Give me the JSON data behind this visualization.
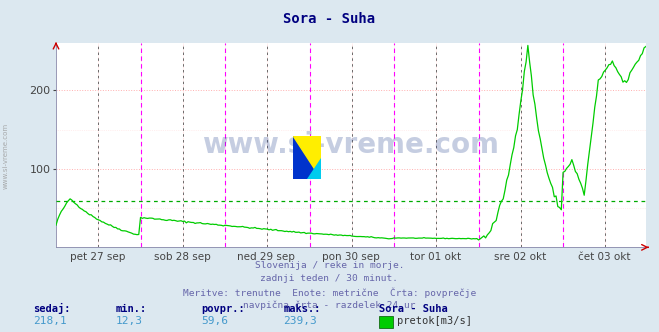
{
  "title": "Sora - Suha",
  "bg_color": "#dce8f0",
  "plot_bg_color": "#ffffff",
  "line_color": "#00cc00",
  "avg_line_color": "#00aa00",
  "avg_value": 59.6,
  "ylim": [
    0,
    260
  ],
  "yticks": [
    100,
    200
  ],
  "grid_color_h": "#ffb0b0",
  "grid_color_v": "#ffb0b0",
  "grid_minor_color": "#ffe0e0",
  "day_line_color": "#ff00ff",
  "noon_line_color": "#555555",
  "watermark": "www.si-vreme.com",
  "watermark_color": "#1a3a8a",
  "watermark_alpha": 0.25,
  "subtitle_lines": [
    "Slovenija / reke in morje.",
    "zadnji teden / 30 minut.",
    "Meritve: trenutne  Enote: metrične  Črta: povprečje",
    "navpična črta - razdelek 24 ur"
  ],
  "footer_labels": [
    "sedaj:",
    "min.:",
    "povpr.:",
    "maks.:"
  ],
  "footer_values": [
    "218,1",
    "12,3",
    "59,6",
    "239,3"
  ],
  "footer_station": "Sora - Suha",
  "footer_legend_label": "pretok[m3/s]",
  "footer_legend_color": "#00cc00",
  "x_tick_labels": [
    "pet 27 sep",
    "sob 28 sep",
    "ned 29 sep",
    "pon 30 sep",
    "tor 01 okt",
    "sre 02 okt",
    "čet 03 okt"
  ],
  "num_points": 336,
  "arrow_color": "#cc0000",
  "title_color": "#000080",
  "subtitle_color": "#6666aa",
  "footer_label_color": "#000080",
  "footer_value_color": "#4499cc",
  "left_text_color": "#aaaaaa",
  "spine_color": "#8888aa"
}
